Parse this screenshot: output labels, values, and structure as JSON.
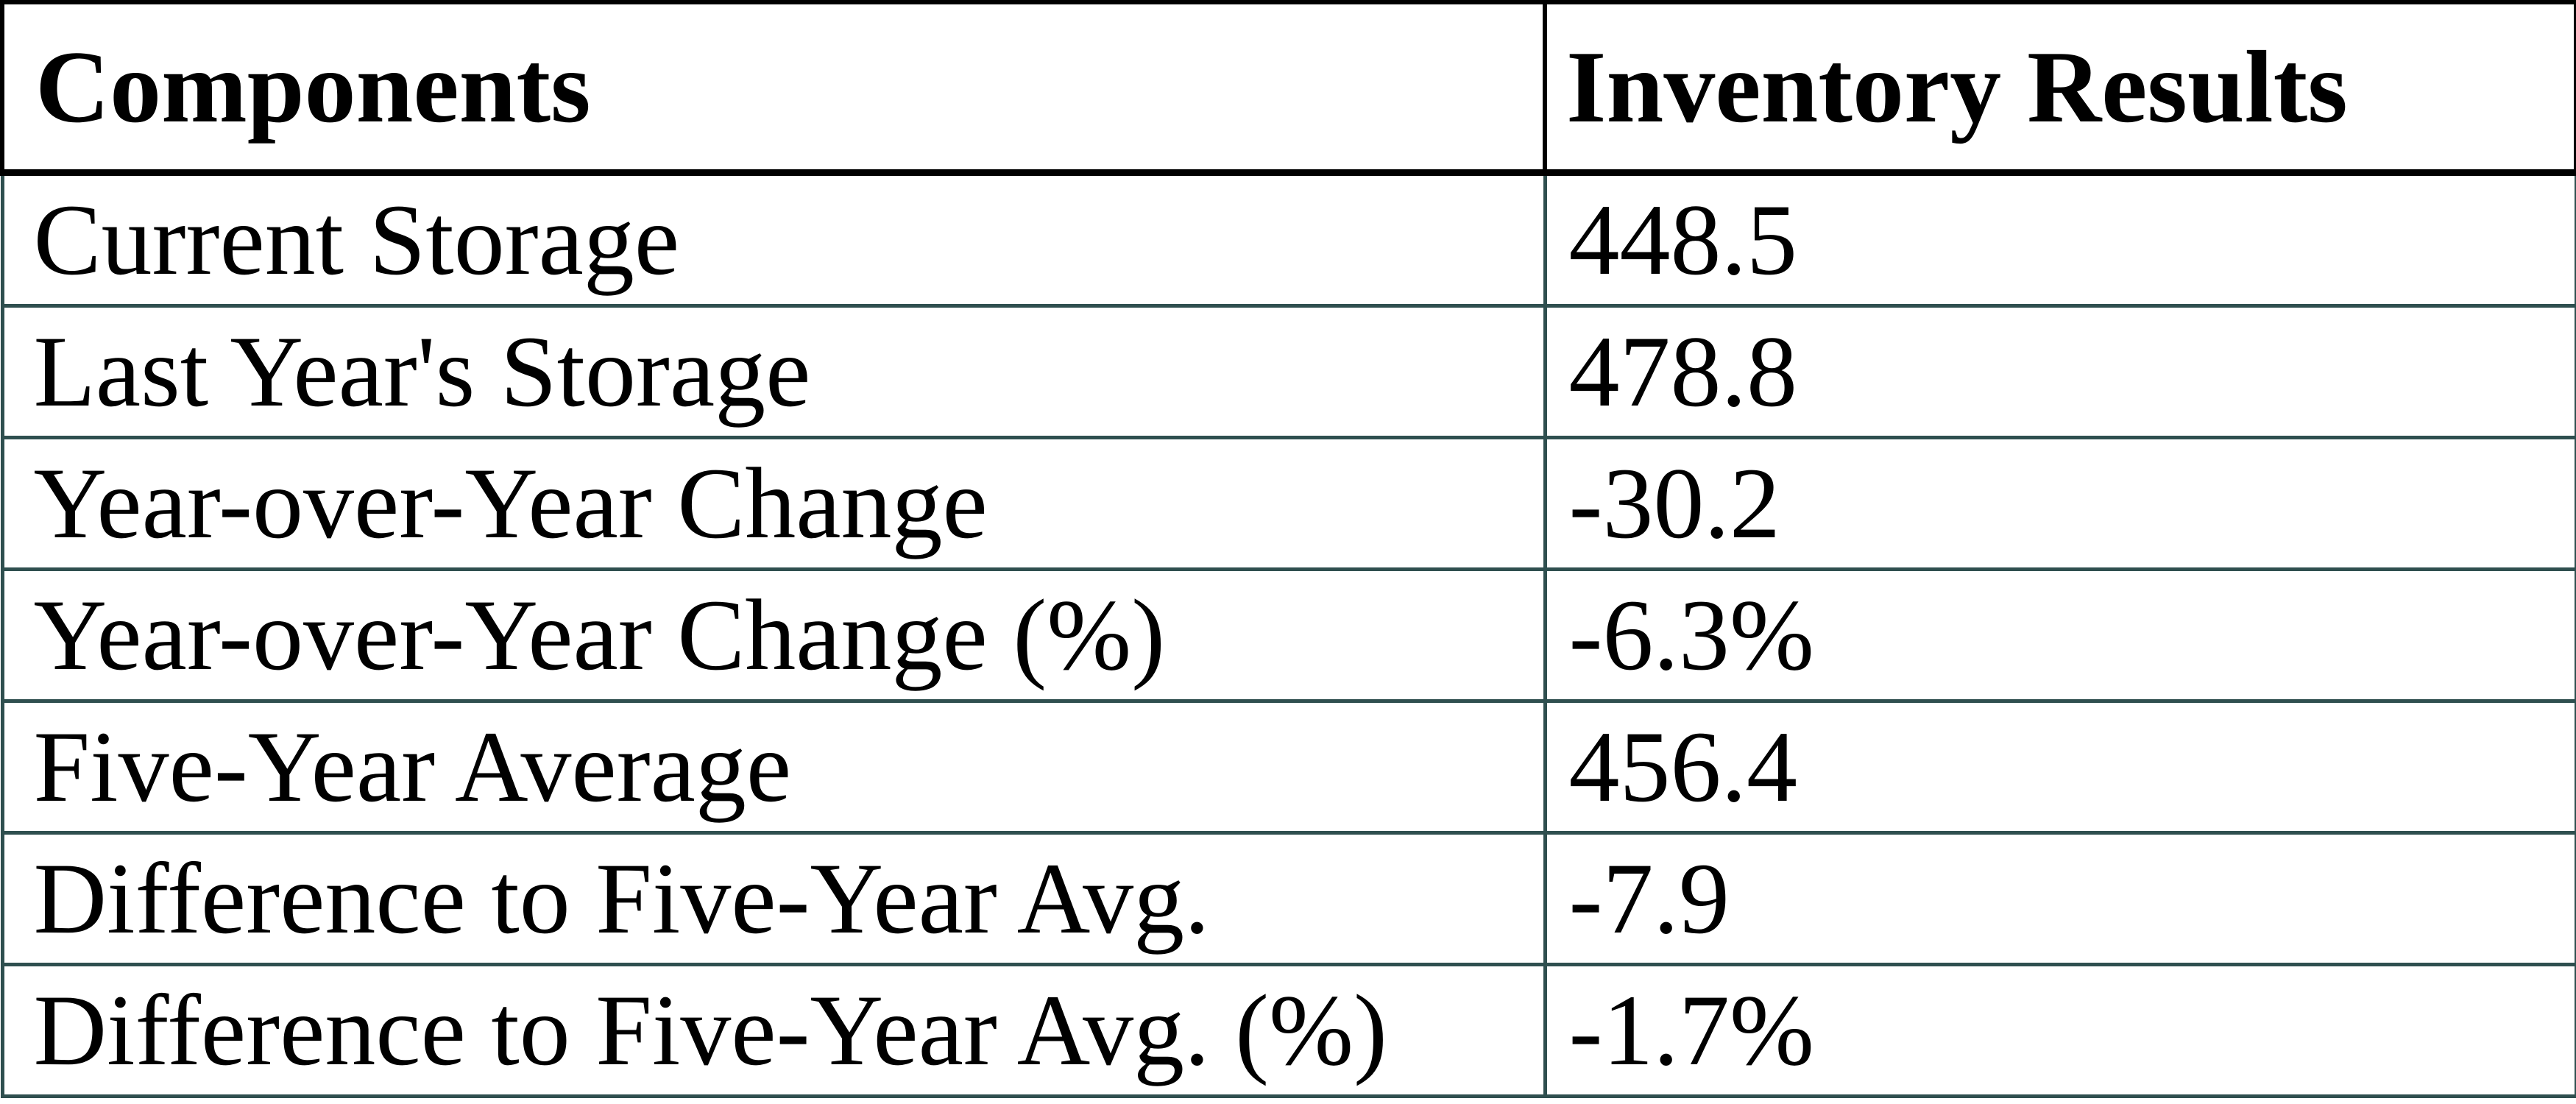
{
  "chart_data": {
    "type": "table",
    "columns": [
      "Components",
      "Inventory Results"
    ],
    "rows": [
      [
        "Current Storage",
        "448.5"
      ],
      [
        "Last Year's Storage",
        "478.8"
      ],
      [
        "Year-over-Year Change",
        "-30.2"
      ],
      [
        "Year-over-Year Change (%)",
        "-6.3%"
      ],
      [
        "Five-Year Average",
        "456.4"
      ],
      [
        "Difference to Five-Year Avg.",
        "-7.9"
      ],
      [
        "Difference to Five-Year Avg. (%)",
        "-1.7%"
      ]
    ],
    "title": "",
    "legend": "none",
    "grid": "full-borders"
  },
  "table": {
    "headers": {
      "components": "Components",
      "results": "Inventory Results"
    },
    "rows": [
      {
        "component": "Current Storage",
        "result": "448.5"
      },
      {
        "component": "Last Year's Storage",
        "result": "478.8"
      },
      {
        "component": "Year-over-Year Change",
        "result": "-30.2"
      },
      {
        "component": "Year-over-Year Change (%)",
        "result": "-6.3%"
      },
      {
        "component": "Five-Year Average",
        "result": "456.4"
      },
      {
        "component": "Difference to Five-Year Avg.",
        "result": "-7.9"
      },
      {
        "component": "Difference to Five-Year Avg. (%)",
        "result": "-1.7%"
      }
    ],
    "colors": {
      "header_border": "#000000",
      "body_border": "#2F4F4F",
      "text": "#000000",
      "background": "#FFFFFF"
    }
  }
}
